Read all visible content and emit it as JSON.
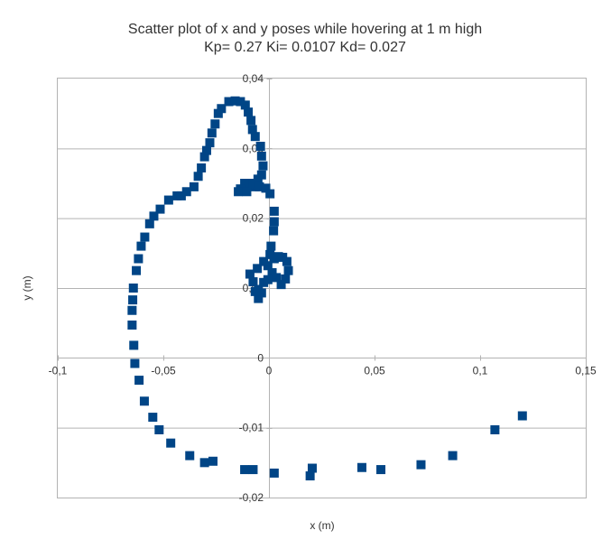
{
  "chart_data": {
    "type": "scatter",
    "title": "Scatter plot of x and y poses while hovering at 1 m high",
    "subtitle": "Kp= 0.27  Ki= 0.0107  Kd= 0.027",
    "xlabel": "x (m)",
    "ylabel": "y (m)",
    "xlim": [
      -0.1,
      0.15
    ],
    "ylim": [
      -0.02,
      0.04
    ],
    "x_ticks": [
      -0.1,
      -0.05,
      0,
      0.05,
      0.1,
      0.15
    ],
    "x_tick_labels": [
      "-0,1",
      "-0,05",
      "0",
      "0,05",
      "0,1",
      "0,15"
    ],
    "y_ticks": [
      -0.02,
      -0.01,
      0,
      0.01,
      0.02,
      0.03,
      0.04
    ],
    "y_tick_labels": [
      "-0,02",
      "-0,01",
      "0",
      "0,01",
      "0,02",
      "0,03",
      "0,04"
    ],
    "grid": "horizontal",
    "legend": "none",
    "marker_color": "#004586",
    "points": [
      [
        0.12,
        -0.0083
      ],
      [
        0.107,
        -0.0103
      ],
      [
        0.087,
        -0.014
      ],
      [
        0.072,
        -0.0153
      ],
      [
        0.053,
        -0.016
      ],
      [
        0.044,
        -0.0157
      ],
      [
        0.0205,
        -0.0158
      ],
      [
        0.0195,
        -0.0169
      ],
      [
        0.0025,
        -0.0165
      ],
      [
        -0.0075,
        -0.016
      ],
      [
        -0.0115,
        -0.016
      ],
      [
        -0.0265,
        -0.0148
      ],
      [
        -0.0305,
        -0.015
      ],
      [
        -0.0375,
        -0.014
      ],
      [
        -0.0465,
        -0.0122
      ],
      [
        -0.052,
        -0.0103
      ],
      [
        -0.055,
        -0.0085
      ],
      [
        -0.059,
        -0.0062
      ],
      [
        -0.0615,
        -0.0032
      ],
      [
        -0.0635,
        -0.0008
      ],
      [
        -0.064,
        0.0018
      ],
      [
        -0.0648,
        0.0047
      ],
      [
        -0.0648,
        0.0068
      ],
      [
        -0.0645,
        0.0083
      ],
      [
        -0.0642,
        0.01
      ],
      [
        -0.0628,
        0.0125
      ],
      [
        -0.0618,
        0.0142
      ],
      [
        -0.0605,
        0.016
      ],
      [
        -0.0588,
        0.0173
      ],
      [
        -0.0565,
        0.0192
      ],
      [
        -0.0545,
        0.0203
      ],
      [
        -0.0515,
        0.0213
      ],
      [
        -0.0475,
        0.0226
      ],
      [
        -0.0435,
        0.0232
      ],
      [
        -0.0415,
        0.0232
      ],
      [
        -0.039,
        0.0238
      ],
      [
        -0.0355,
        0.0245
      ],
      [
        -0.0335,
        0.026
      ],
      [
        -0.032,
        0.0272
      ],
      [
        -0.0305,
        0.0288
      ],
      [
        -0.0295,
        0.0297
      ],
      [
        -0.028,
        0.0308
      ],
      [
        -0.027,
        0.0322
      ],
      [
        -0.0255,
        0.0335
      ],
      [
        -0.024,
        0.035
      ],
      [
        -0.0225,
        0.0357
      ],
      [
        -0.019,
        0.0367
      ],
      [
        -0.016,
        0.0368
      ],
      [
        -0.0135,
        0.0367
      ],
      [
        -0.0112,
        0.0362
      ],
      [
        -0.0098,
        0.0352
      ],
      [
        -0.0085,
        0.034
      ],
      [
        -0.0078,
        0.0327
      ],
      [
        -0.0065,
        0.0317
      ],
      [
        -0.004,
        0.0303
      ],
      [
        -0.0035,
        0.0289
      ],
      [
        -0.0028,
        0.0275
      ],
      [
        -0.0035,
        0.0262
      ],
      [
        -0.0052,
        0.0256
      ],
      [
        -0.0065,
        0.0245
      ],
      [
        -0.0095,
        0.0247
      ],
      [
        -0.0115,
        0.025
      ],
      [
        -0.0135,
        0.0242
      ],
      [
        -0.0145,
        0.0238
      ],
      [
        -0.0105,
        0.0238
      ],
      [
        -0.0075,
        0.025
      ],
      [
        -0.0045,
        0.0245
      ],
      [
        -0.0015,
        0.0243
      ],
      [
        0.0005,
        0.0235
      ],
      [
        0.0025,
        0.021
      ],
      [
        0.0025,
        0.0195
      ],
      [
        0.0022,
        0.0182
      ],
      [
        0.001,
        0.016
      ],
      [
        0.0005,
        0.0148
      ],
      [
        0.0025,
        0.0142
      ],
      [
        0.0045,
        0.0145
      ],
      [
        0.0065,
        0.0144
      ],
      [
        0.0085,
        0.0138
      ],
      [
        0.0092,
        0.0125
      ],
      [
        0.0078,
        0.0113
      ],
      [
        0.0058,
        0.0105
      ],
      [
        0.0035,
        0.0115
      ],
      [
        0.0015,
        0.0122
      ],
      [
        -0.0005,
        0.0132
      ],
      [
        -0.0025,
        0.0138
      ],
      [
        -0.0055,
        0.0128
      ],
      [
        -0.009,
        0.012
      ],
      [
        -0.0075,
        0.0109
      ],
      [
        -0.005,
        0.0098
      ],
      [
        -0.0035,
        0.0093
      ],
      [
        -0.005,
        0.0085
      ],
      [
        -0.0065,
        0.0095
      ],
      [
        -0.0025,
        0.0108
      ],
      [
        0.0015,
        0.012
      ],
      [
        -0.0005,
        0.0112
      ]
    ]
  }
}
